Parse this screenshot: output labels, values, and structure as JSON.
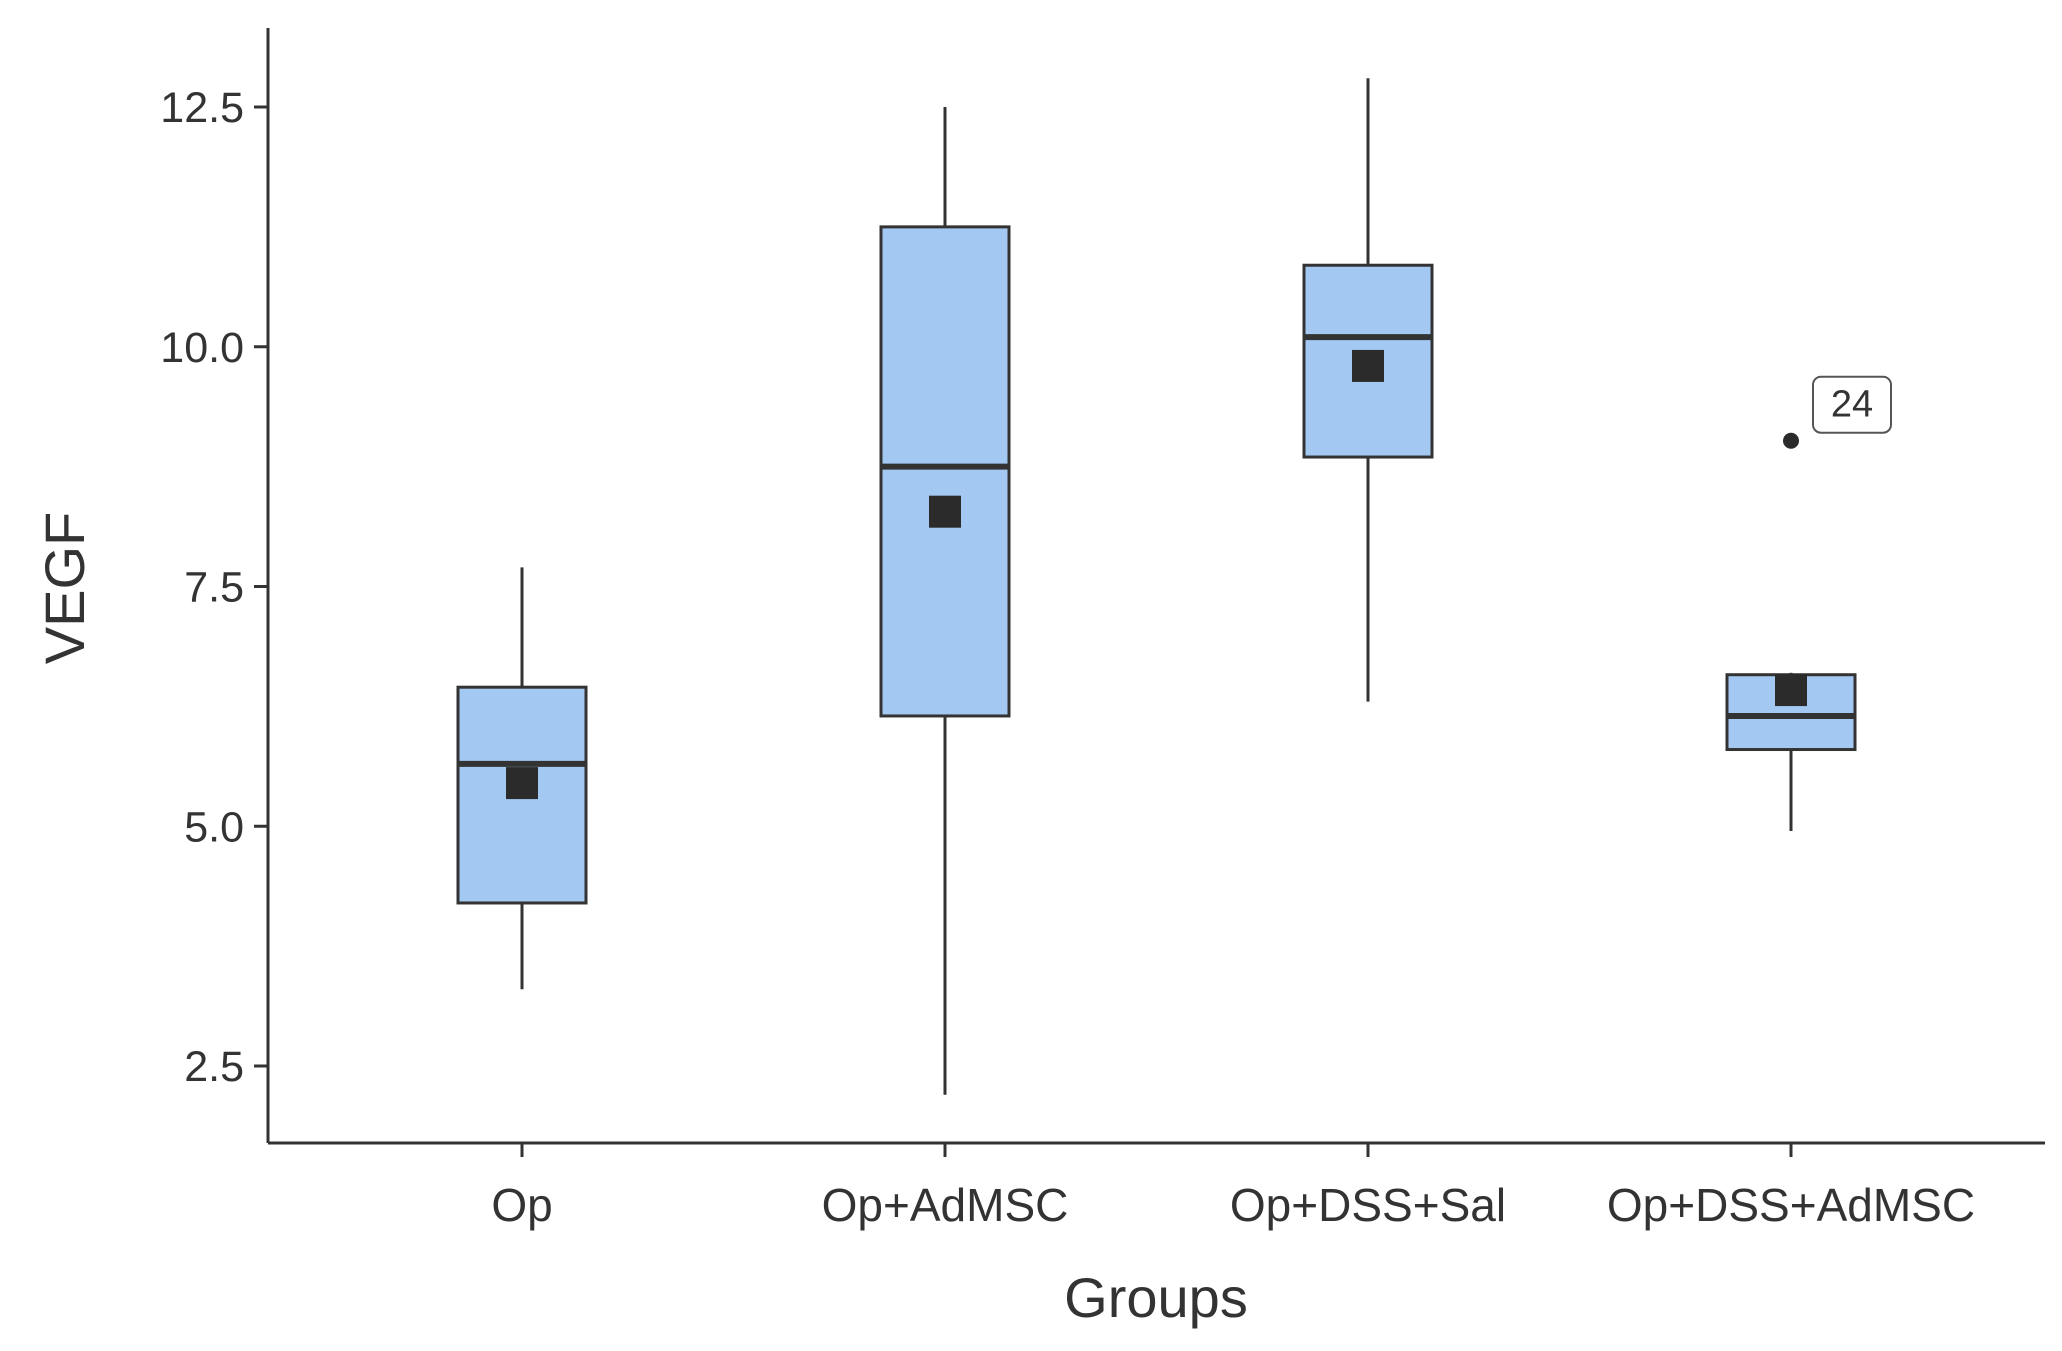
{
  "chart_data": {
    "type": "box",
    "title": "",
    "xlabel": "Groups",
    "ylabel": "VEGF",
    "ylim": [
      1.7,
      13.3
    ],
    "yticks": [
      "2.5",
      "5.0",
      "7.5",
      "10.0",
      "12.5"
    ],
    "categories": [
      "Op",
      "Op+AdMSC",
      "Op+DSS+Sal",
      "Op+DSS+AdMSC"
    ],
    "boxes": [
      {
        "group": "Op",
        "whisker_low": 3.3,
        "q1": 4.2,
        "median": 5.65,
        "q3": 6.45,
        "whisker_high": 7.7,
        "mean": 5.45
      },
      {
        "group": "Op+AdMSC",
        "whisker_low": 2.2,
        "q1": 6.15,
        "median": 8.75,
        "q3": 11.25,
        "whisker_high": 12.5,
        "mean": 8.28
      },
      {
        "group": "Op+DSS+Sal",
        "whisker_low": 6.3,
        "q1": 8.85,
        "median": 10.1,
        "q3": 10.85,
        "whisker_high": 12.8,
        "mean": 9.8
      },
      {
        "group": "Op+DSS+AdMSC",
        "whisker_low": 4.95,
        "q1": 5.8,
        "median": 6.15,
        "q3": 6.58,
        "whisker_high": 6.6,
        "mean": 6.42
      }
    ],
    "outliers": [
      {
        "group": "Op+DSS+AdMSC",
        "value": 9.02,
        "label": "24"
      }
    ],
    "colors": {
      "box_fill": "#a3c9f3",
      "box_stroke": "#333333",
      "median": "#333333",
      "mean_marker": "#2b2b2b",
      "axis": "#333333"
    }
  }
}
